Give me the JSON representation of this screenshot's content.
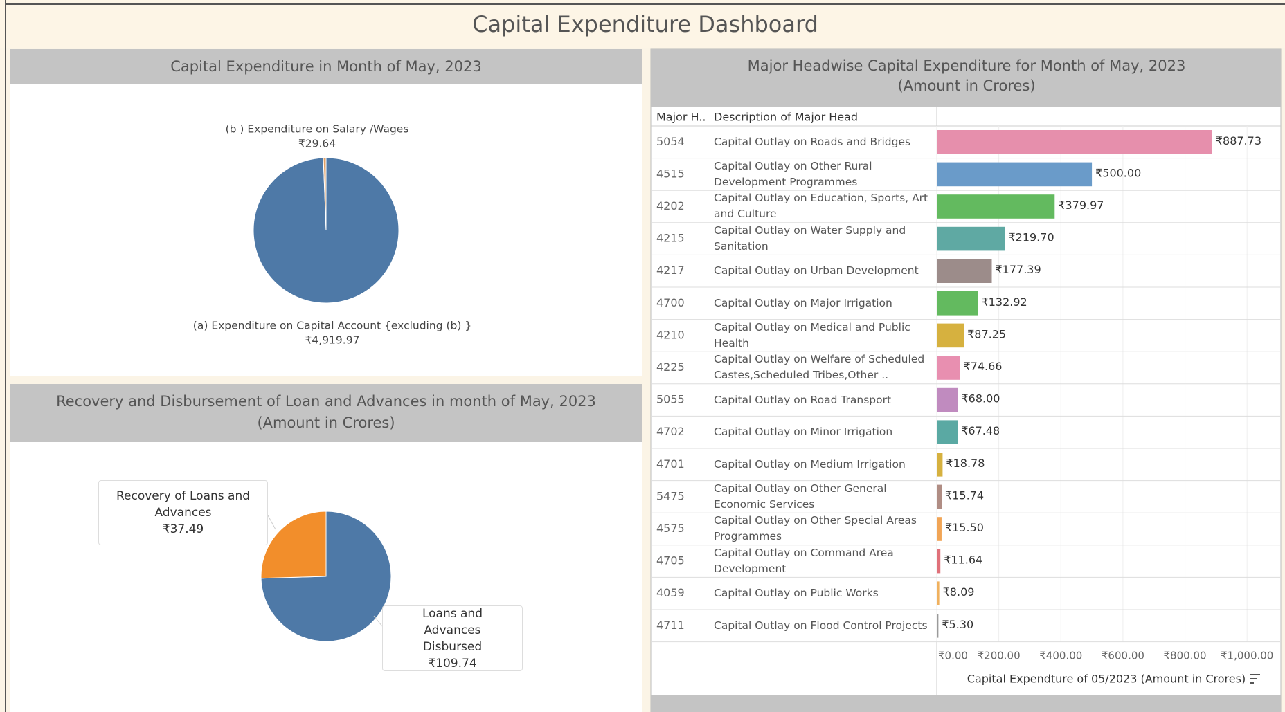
{
  "dashboard_title": "Capital Expenditure Dashboard",
  "chart_data": [
    {
      "type": "pie",
      "title": "Capital Expenditure in Month of May, 2023",
      "categories": [
        "(a) Expenditure on Capital Account {excluding (b) }",
        "(b ) Expenditure on Salary /Wages"
      ],
      "values": [
        4919.97,
        29.64
      ],
      "value_labels": [
        "₹4,919.97",
        "₹29.64"
      ],
      "colors": [
        "#4e79a7",
        "#e0a066"
      ]
    },
    {
      "type": "pie",
      "title": "Recovery and Disbursement of Loan and Advances in month of May, 2023",
      "subtitle": "(Amount in Crores)",
      "categories": [
        "Loans and Advances Disbursed",
        "Recovery of Loans and Advances"
      ],
      "values": [
        109.74,
        37.49
      ],
      "value_labels": [
        "₹109.74",
        "₹37.49"
      ],
      "colors": [
        "#4e79a7",
        "#f28e2b"
      ]
    },
    {
      "type": "bar",
      "orientation": "horizontal",
      "title": "Major Headwise Capital Expenditure for Month of May, 2023",
      "subtitle": "(Amount in Crores)",
      "column_headers": [
        "Major H..",
        "Description of Major Head"
      ],
      "codes": [
        "5054",
        "4515",
        "4202",
        "4215",
        "4217",
        "4700",
        "4210",
        "4225",
        "5055",
        "4702",
        "4701",
        "5475",
        "4575",
        "4705",
        "4059",
        "4711"
      ],
      "categories": [
        "Capital Outlay on Roads and Bridges",
        "Capital Outlay on Other Rural Development Programmes",
        "Capital Outlay on Education, Sports, Art and Culture",
        "Capital Outlay on Water Supply and Sanitation",
        "Capital Outlay on Urban Development",
        "Capital Outlay on Major Irrigation",
        "Capital Outlay on Medical and Public Health",
        "Capital Outlay on Welfare of Scheduled Castes,Scheduled Tribes,Other ..",
        "Capital Outlay on Road Transport",
        "Capital Outlay on Minor Irrigation",
        "Capital Outlay on Medium Irrigation",
        "Capital Outlay on Other General Economic Services",
        "Capital Outlay on Other Special Areas Programmes",
        "Capital Outlay on Command Area Development",
        "Capital Outlay on Public Works",
        "Capital Outlay on Flood Control Projects"
      ],
      "values": [
        887.73,
        500.0,
        379.97,
        219.7,
        177.39,
        132.92,
        87.25,
        74.66,
        68.0,
        67.48,
        18.78,
        15.74,
        15.5,
        11.64,
        8.09,
        5.3
      ],
      "value_labels": [
        "₹887.73",
        "₹500.00",
        "₹379.97",
        "₹219.70",
        "₹177.39",
        "₹132.92",
        "₹87.25",
        "₹74.66",
        "₹68.00",
        "₹67.48",
        "₹18.78",
        "₹15.74",
        "₹15.50",
        "₹11.64",
        "₹8.09",
        "₹5.30"
      ],
      "colors": [
        "#e68fac",
        "#6a9bc9",
        "#63ba5f",
        "#5fa9a3",
        "#9c8c8a",
        "#63ba5f",
        "#d6b13f",
        "#e88fb0",
        "#c08bbf",
        "#5aa9a3",
        "#d6b13f",
        "#b08d84",
        "#f1a556",
        "#e0717a",
        "#f0b15e",
        "#9a9a9a"
      ],
      "xlim": [
        0,
        1100
      ],
      "xticks": [
        {
          "value": 0,
          "label": "₹0.00"
        },
        {
          "value": 200,
          "label": "₹200.00"
        },
        {
          "value": 400,
          "label": "₹400.00"
        },
        {
          "value": 600,
          "label": "₹600.00"
        },
        {
          "value": 800,
          "label": "₹800.00"
        },
        {
          "value": 1000,
          "label": "₹1,000.00"
        }
      ],
      "x_label": "Capital Expendture of 05/2023 (Amount in Crores)",
      "grid": true
    }
  ]
}
